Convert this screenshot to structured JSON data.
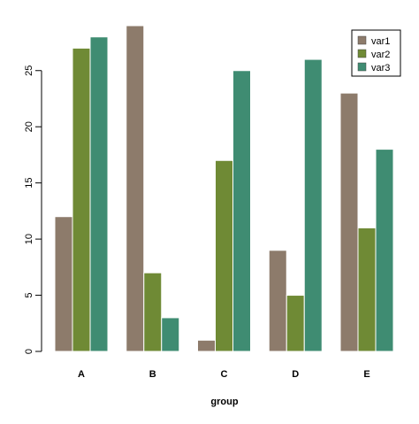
{
  "chart_data": {
    "type": "bar",
    "categories": [
      "A",
      "B",
      "C",
      "D",
      "E"
    ],
    "series": [
      {
        "name": "var1",
        "values": [
          12,
          29,
          1,
          9,
          23
        ]
      },
      {
        "name": "var2",
        "values": [
          27,
          7,
          17,
          5,
          11
        ]
      },
      {
        "name": "var3",
        "values": [
          28,
          3,
          25,
          26,
          18
        ]
      }
    ],
    "xlabel": "group",
    "ylabel": "",
    "ylim": [
      0,
      29
    ],
    "yticks": [
      0,
      5,
      10,
      15,
      20,
      25
    ],
    "grid": false,
    "legend_position": "top-right",
    "colors": {
      "var1": "#8d7b6b",
      "var2": "#6f8a35",
      "var3": "#3f8c72"
    }
  }
}
